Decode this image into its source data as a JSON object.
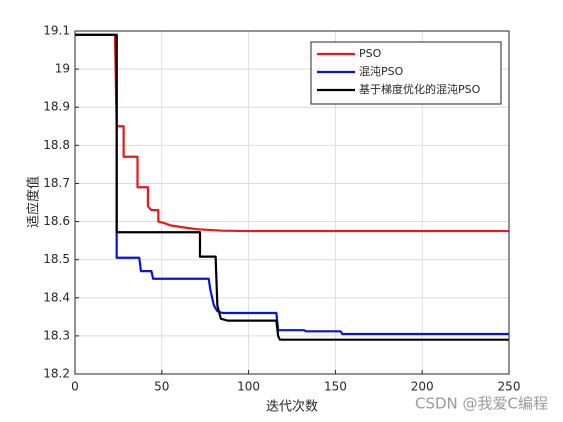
{
  "chart_data": {
    "type": "line",
    "xlabel": "迭代次数",
    "ylabel": "适应度值",
    "xlim": [
      0,
      250
    ],
    "ylim": [
      18.2,
      19.1
    ],
    "xticks": [
      0,
      50,
      100,
      150,
      200,
      250
    ],
    "yticks": [
      18.2,
      18.3,
      18.4,
      18.5,
      18.6,
      18.7,
      18.8,
      18.9,
      19,
      19.1
    ],
    "grid": true,
    "legend": "upper right",
    "series": [
      {
        "name": "PSO",
        "color": "#e41a1c",
        "x": [
          0,
          23,
          24,
          28,
          28,
          36,
          36,
          42,
          42,
          44,
          48,
          48,
          52,
          55,
          62,
          70,
          85,
          100,
          250
        ],
        "values": [
          19.09,
          19.09,
          18.85,
          18.85,
          18.77,
          18.77,
          18.69,
          18.69,
          18.64,
          18.63,
          18.63,
          18.6,
          18.595,
          18.59,
          18.585,
          18.58,
          18.576,
          18.575,
          18.575
        ]
      },
      {
        "name": "混沌PSO",
        "color": "#0a14d0",
        "x": [
          0,
          24,
          24,
          37,
          38,
          44,
          45,
          77,
          78,
          80,
          82,
          85,
          116,
          117,
          132,
          133,
          153,
          154,
          250
        ],
        "values": [
          19.09,
          19.09,
          18.505,
          18.505,
          18.47,
          18.47,
          18.45,
          18.45,
          18.42,
          18.38,
          18.365,
          18.36,
          18.36,
          18.315,
          18.315,
          18.312,
          18.312,
          18.305,
          18.305
        ]
      },
      {
        "name": "基于梯度优化的混沌PSO",
        "color": "#000000",
        "x": [
          0,
          24,
          24,
          72,
          72,
          81,
          82,
          84,
          88,
          116,
          117,
          118,
          250
        ],
        "values": [
          19.09,
          19.09,
          18.572,
          18.572,
          18.508,
          18.508,
          18.38,
          18.345,
          18.34,
          18.34,
          18.3,
          18.29,
          18.29
        ]
      }
    ]
  },
  "watermark": "CSDN @我爱C编程"
}
